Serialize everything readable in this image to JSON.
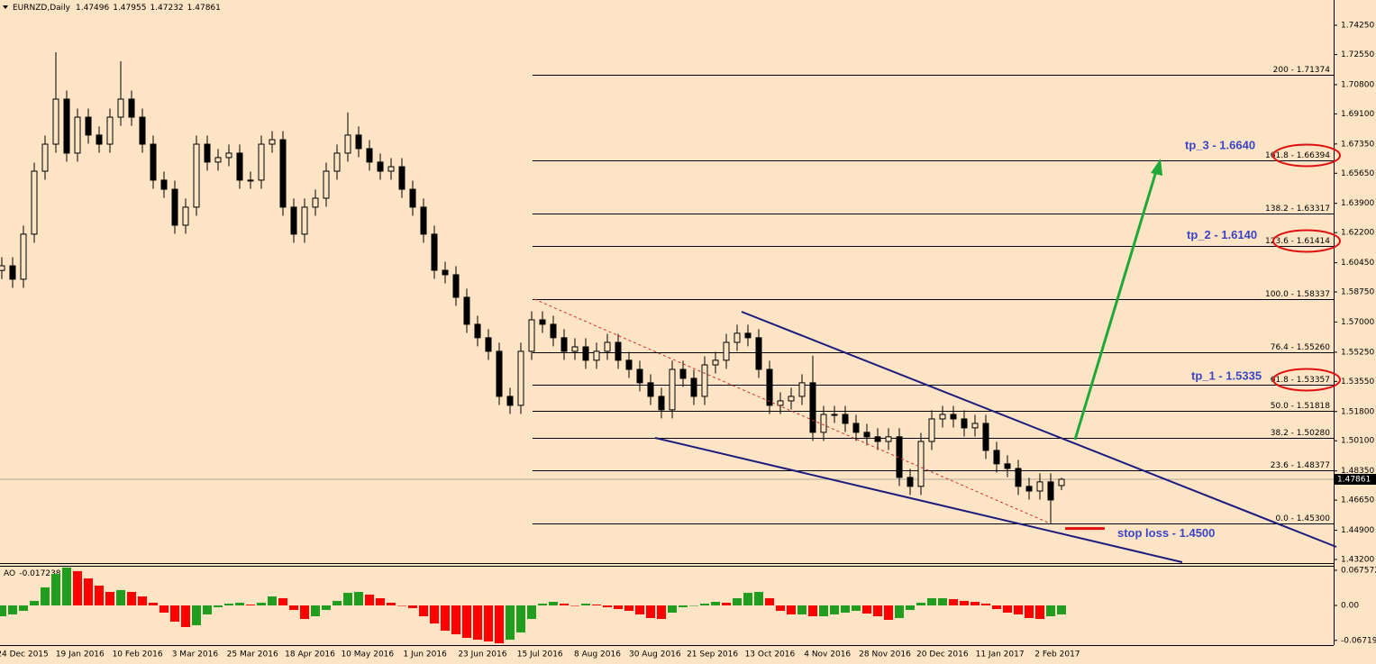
{
  "chart_data": {
    "type": "candlestick",
    "symbol": "EURNZD,Daily",
    "indicator_name": "AO",
    "indicator_value": -0.017238,
    "dates": [
      "24 Dec 2015",
      "19 Jan 2016",
      "10 Feb 2016",
      "3 Mar 2016",
      "25 Mar 2016",
      "18 Apr 2016",
      "10 May 2016",
      "1 Jun 2016",
      "23 Jun 2016",
      "15 Jul 2016",
      "8 Aug 2016",
      "30 Aug 2016",
      "21 Sep 2016",
      "13 Oct 2016",
      "4 Nov 2016",
      "28 Nov 2016",
      "20 Dec 2016",
      "11 Jan 2017",
      "2 Feb 2017"
    ],
    "open": [
      1.6,
      1.6027,
      1.5949,
      1.6211,
      1.6577,
      1.6734,
      1.6996,
      1.6682,
      1.6891,
      1.6787,
      1.6734,
      1.6891,
      1.6996,
      1.6891,
      1.6734,
      1.6525,
      1.6472,
      1.6263,
      1.6368,
      1.6734,
      1.663,
      1.6656,
      1.6682,
      1.6525,
      1.6525,
      1.6734,
      1.676,
      1.6368,
      1.6211,
      1.6368,
      1.642,
      1.6577,
      1.6682,
      1.6787,
      1.6708,
      1.663,
      1.6577,
      1.6603,
      1.6472,
      1.6368,
      1.6211,
      1.6001,
      1.5975,
      1.5844,
      1.5687,
      1.5609,
      1.553,
      1.5268,
      1.5216,
      1.553,
      1.5713,
      1.5687,
      1.5609,
      1.553,
      1.5556,
      1.5478,
      1.553,
      1.5582,
      1.5478,
      1.5425,
      1.5347,
      1.5268,
      1.519,
      1.5425,
      1.5373,
      1.5268,
      1.5451,
      1.5478,
      1.5582,
      1.5635,
      1.5609,
      1.5425,
      1.5216,
      1.5242,
      1.5268,
      1.5347,
      1.5059,
      1.5163,
      1.5163,
      1.5111,
      1.5059,
      1.5033,
      1.5006,
      1.5033,
      1.4797,
      1.4745,
      1.5006,
      1.5137,
      1.5163,
      1.5137,
      1.5085,
      1.5111,
      1.4954,
      1.4876,
      1.4849,
      1.4745,
      1.4718,
      1.4771,
      1.47496
    ],
    "high": [
      1.6077,
      1.6077,
      1.6261,
      1.6627,
      1.6784,
      1.7268,
      1.7046,
      1.6941,
      1.6941,
      1.6837,
      1.6941,
      1.7216,
      1.7046,
      1.6941,
      1.6784,
      1.6575,
      1.6522,
      1.6418,
      1.6784,
      1.6784,
      1.6706,
      1.6732,
      1.6732,
      1.6575,
      1.6784,
      1.681,
      1.681,
      1.6418,
      1.6418,
      1.647,
      1.6627,
      1.6732,
      1.6918,
      1.6837,
      1.6758,
      1.668,
      1.6653,
      1.6653,
      1.6522,
      1.6418,
      1.6261,
      1.6051,
      1.6025,
      1.5894,
      1.5737,
      1.5659,
      1.558,
      1.5318,
      1.558,
      1.5763,
      1.5763,
      1.5737,
      1.5659,
      1.5606,
      1.5606,
      1.558,
      1.5632,
      1.5632,
      1.5528,
      1.5475,
      1.5397,
      1.5318,
      1.5475,
      1.5475,
      1.5423,
      1.5501,
      1.5528,
      1.5632,
      1.5685,
      1.5685,
      1.5659,
      1.5475,
      1.5292,
      1.5318,
      1.5397,
      1.5504,
      1.5213,
      1.5213,
      1.5213,
      1.5161,
      1.5109,
      1.5083,
      1.5083,
      1.5083,
      1.4847,
      1.5056,
      1.5187,
      1.5213,
      1.5213,
      1.5187,
      1.5161,
      1.5161,
      1.5004,
      1.4926,
      1.4899,
      1.4795,
      1.4821,
      1.4821,
      1.47955
    ],
    "low": [
      1.595,
      1.5899,
      1.5899,
      1.6161,
      1.6527,
      1.6684,
      1.6632,
      1.6632,
      1.6737,
      1.6684,
      1.6684,
      1.6841,
      1.6841,
      1.6684,
      1.6475,
      1.6422,
      1.6213,
      1.6213,
      1.6318,
      1.658,
      1.658,
      1.6606,
      1.6475,
      1.6475,
      1.6475,
      1.6684,
      1.6318,
      1.6161,
      1.6161,
      1.6318,
      1.637,
      1.6527,
      1.6632,
      1.6658,
      1.658,
      1.6527,
      1.6527,
      1.6422,
      1.6318,
      1.6161,
      1.5951,
      1.5925,
      1.5794,
      1.5637,
      1.5559,
      1.548,
      1.5218,
      1.5166,
      1.5166,
      1.548,
      1.5637,
      1.5559,
      1.548,
      1.548,
      1.5428,
      1.5428,
      1.548,
      1.5428,
      1.5375,
      1.5297,
      1.5218,
      1.514,
      1.514,
      1.5323,
      1.5218,
      1.5218,
      1.5401,
      1.5428,
      1.5532,
      1.5559,
      1.5375,
      1.5166,
      1.5166,
      1.5192,
      1.5218,
      1.5009,
      1.5009,
      1.5113,
      1.5061,
      1.5009,
      1.4983,
      1.4956,
      1.4956,
      1.4747,
      1.4695,
      1.4695,
      1.4956,
      1.5087,
      1.5087,
      1.5035,
      1.5035,
      1.4904,
      1.4826,
      1.4799,
      1.4695,
      1.4668,
      1.4668,
      1.453,
      1.47232
    ],
    "close": [
      1.6027,
      1.5949,
      1.6211,
      1.6577,
      1.6734,
      1.6996,
      1.6682,
      1.6891,
      1.6787,
      1.6734,
      1.6891,
      1.6996,
      1.6891,
      1.6734,
      1.6525,
      1.6472,
      1.6263,
      1.6368,
      1.6734,
      1.663,
      1.6656,
      1.6682,
      1.6525,
      1.6525,
      1.6734,
      1.676,
      1.6368,
      1.6211,
      1.6368,
      1.642,
      1.6577,
      1.6682,
      1.6787,
      1.6708,
      1.663,
      1.6577,
      1.6603,
      1.6472,
      1.6368,
      1.6211,
      1.6001,
      1.5975,
      1.5844,
      1.5687,
      1.5609,
      1.553,
      1.5268,
      1.5216,
      1.553,
      1.5713,
      1.5687,
      1.5609,
      1.553,
      1.5556,
      1.5478,
      1.553,
      1.5582,
      1.5478,
      1.5425,
      1.5347,
      1.5268,
      1.519,
      1.5425,
      1.5373,
      1.5268,
      1.5451,
      1.5478,
      1.5582,
      1.5635,
      1.5609,
      1.5425,
      1.5216,
      1.5242,
      1.5268,
      1.5347,
      1.5059,
      1.5163,
      1.5163,
      1.5111,
      1.5059,
      1.5033,
      1.5006,
      1.5033,
      1.4797,
      1.4745,
      1.5006,
      1.5137,
      1.5163,
      1.5137,
      1.5085,
      1.5111,
      1.4954,
      1.4876,
      1.4849,
      1.4745,
      1.4718,
      1.4771,
      1.4666,
      1.47861
    ],
    "ao": [
      -0.0208,
      -0.0173,
      -0.0104,
      0.0087,
      0.0347,
      0.0607,
      0.0728,
      0.0659,
      0.052,
      0.0381,
      0.026,
      0.0295,
      0.026,
      0.0173,
      0.0052,
      -0.0139,
      -0.0312,
      -0.0416,
      -0.0381,
      -0.0173,
      -0.0035,
      0.0035,
      0.0052,
      0.0017,
      0.0052,
      0.0173,
      0.0139,
      -0.0087,
      -0.026,
      -0.0208,
      -0.0087,
      0.0087,
      0.0243,
      0.026,
      0.0208,
      0.0139,
      0.0052,
      0,
      -0.0052,
      -0.0208,
      -0.0347,
      -0.0485,
      -0.0555,
      -0.0624,
      -0.0659,
      -0.0693,
      -0.0728,
      -0.0659,
      -0.052,
      -0.026,
      0.0035,
      0.0069,
      0.0035,
      0,
      0.0035,
      0.0017,
      -0.0035,
      -0.0069,
      -0.0104,
      -0.0173,
      -0.0243,
      -0.026,
      -0.0139,
      -0.0035,
      0,
      0.0035,
      0.0069,
      0.0052,
      0.0139,
      0.0243,
      0.026,
      0.0139,
      -0.0104,
      -0.0173,
      -0.0173,
      -0.0208,
      -0.0208,
      -0.0173,
      -0.0139,
      -0.0104,
      -0.0156,
      -0.0208,
      -0.0277,
      -0.0243,
      -0.0087,
      0.0052,
      0.0139,
      0.0139,
      0.0121,
      0.0087,
      0.0069,
      0.0035,
      -0.0069,
      -0.0139,
      -0.0173,
      -0.0243,
      -0.026,
      -0.0208,
      -0.0173
    ],
    "ao_up_color": "#1f9e1f",
    "ao_down_color": "#ff0000",
    "ylim": [
      1.4299,
      1.7572
    ],
    "yticks": [
      {
        "value": 1.7425,
        "label": "1.74250"
      },
      {
        "value": 1.7255,
        "label": "1.72550"
      },
      {
        "value": 1.708,
        "label": "1.70800"
      },
      {
        "value": 1.691,
        "label": "1.69100"
      },
      {
        "value": 1.6735,
        "label": "1.67350"
      },
      {
        "value": 1.6565,
        "label": "1.65650"
      },
      {
        "value": 1.639,
        "label": "1.63900"
      },
      {
        "value": 1.622,
        "label": "1.62200"
      },
      {
        "value": 1.6045,
        "label": "1.60450"
      },
      {
        "value": 1.5875,
        "label": "1.58750"
      },
      {
        "value": 1.57,
        "label": "1.57000"
      },
      {
        "value": 1.5525,
        "label": "1.55250"
      },
      {
        "value": 1.5355,
        "label": "1.53550"
      },
      {
        "value": 1.518,
        "label": "1.51800"
      },
      {
        "value": 1.501,
        "label": "1.50100"
      },
      {
        "value": 1.4835,
        "label": "1.48350"
      },
      {
        "value": 1.4665,
        "label": "1.46650"
      },
      {
        "value": 1.449,
        "label": "1.44900"
      },
      {
        "value": 1.432,
        "label": "1.43200"
      }
    ],
    "y2lim": [
      -0.0745,
      0.0762
    ],
    "y2ticks": [
      0.067572,
      {
        "value": 0,
        "label": "0.00"
      },
      -0.06719
    ],
    "fib_levels": [
      {
        "label": "200 - 1.71374",
        "value": 1.71374,
        "circled": false
      },
      {
        "label": "161.8 - 1.66394",
        "value": 1.66394,
        "circled": true
      },
      {
        "label": "138.2 - 1.63317",
        "value": 1.63317,
        "circled": false
      },
      {
        "label": "123.6 - 1.61414",
        "value": 1.61414,
        "circled": true
      },
      {
        "label": "100.0 - 1.58337",
        "value": 1.58337,
        "circled": false
      },
      {
        "label": "76.4 - 1.55260",
        "value": 1.5526,
        "circled": false
      },
      {
        "label": "61.8 - 1.53357",
        "value": 1.53357,
        "circled": true
      },
      {
        "label": "50.0 - 1.51818",
        "value": 1.51818,
        "circled": false
      },
      {
        "label": "38.2 - 1.50280",
        "value": 1.5028,
        "circled": false
      },
      {
        "label": "23.6 - 1.48377",
        "value": 1.48377,
        "circled": false
      },
      {
        "label": "0.0 - 1.45300",
        "value": 1.453,
        "circled": false
      }
    ],
    "annotations": [
      {
        "text": "tp_3 - 1.6640",
        "value": 1.664
      },
      {
        "text": "tp_2 - 1.6140",
        "value": 1.614
      },
      {
        "text": "tp_1 - 1.5335",
        "value": 1.5335
      },
      {
        "text": "stop loss - 1.4500",
        "value": 1.45
      }
    ]
  }
}
